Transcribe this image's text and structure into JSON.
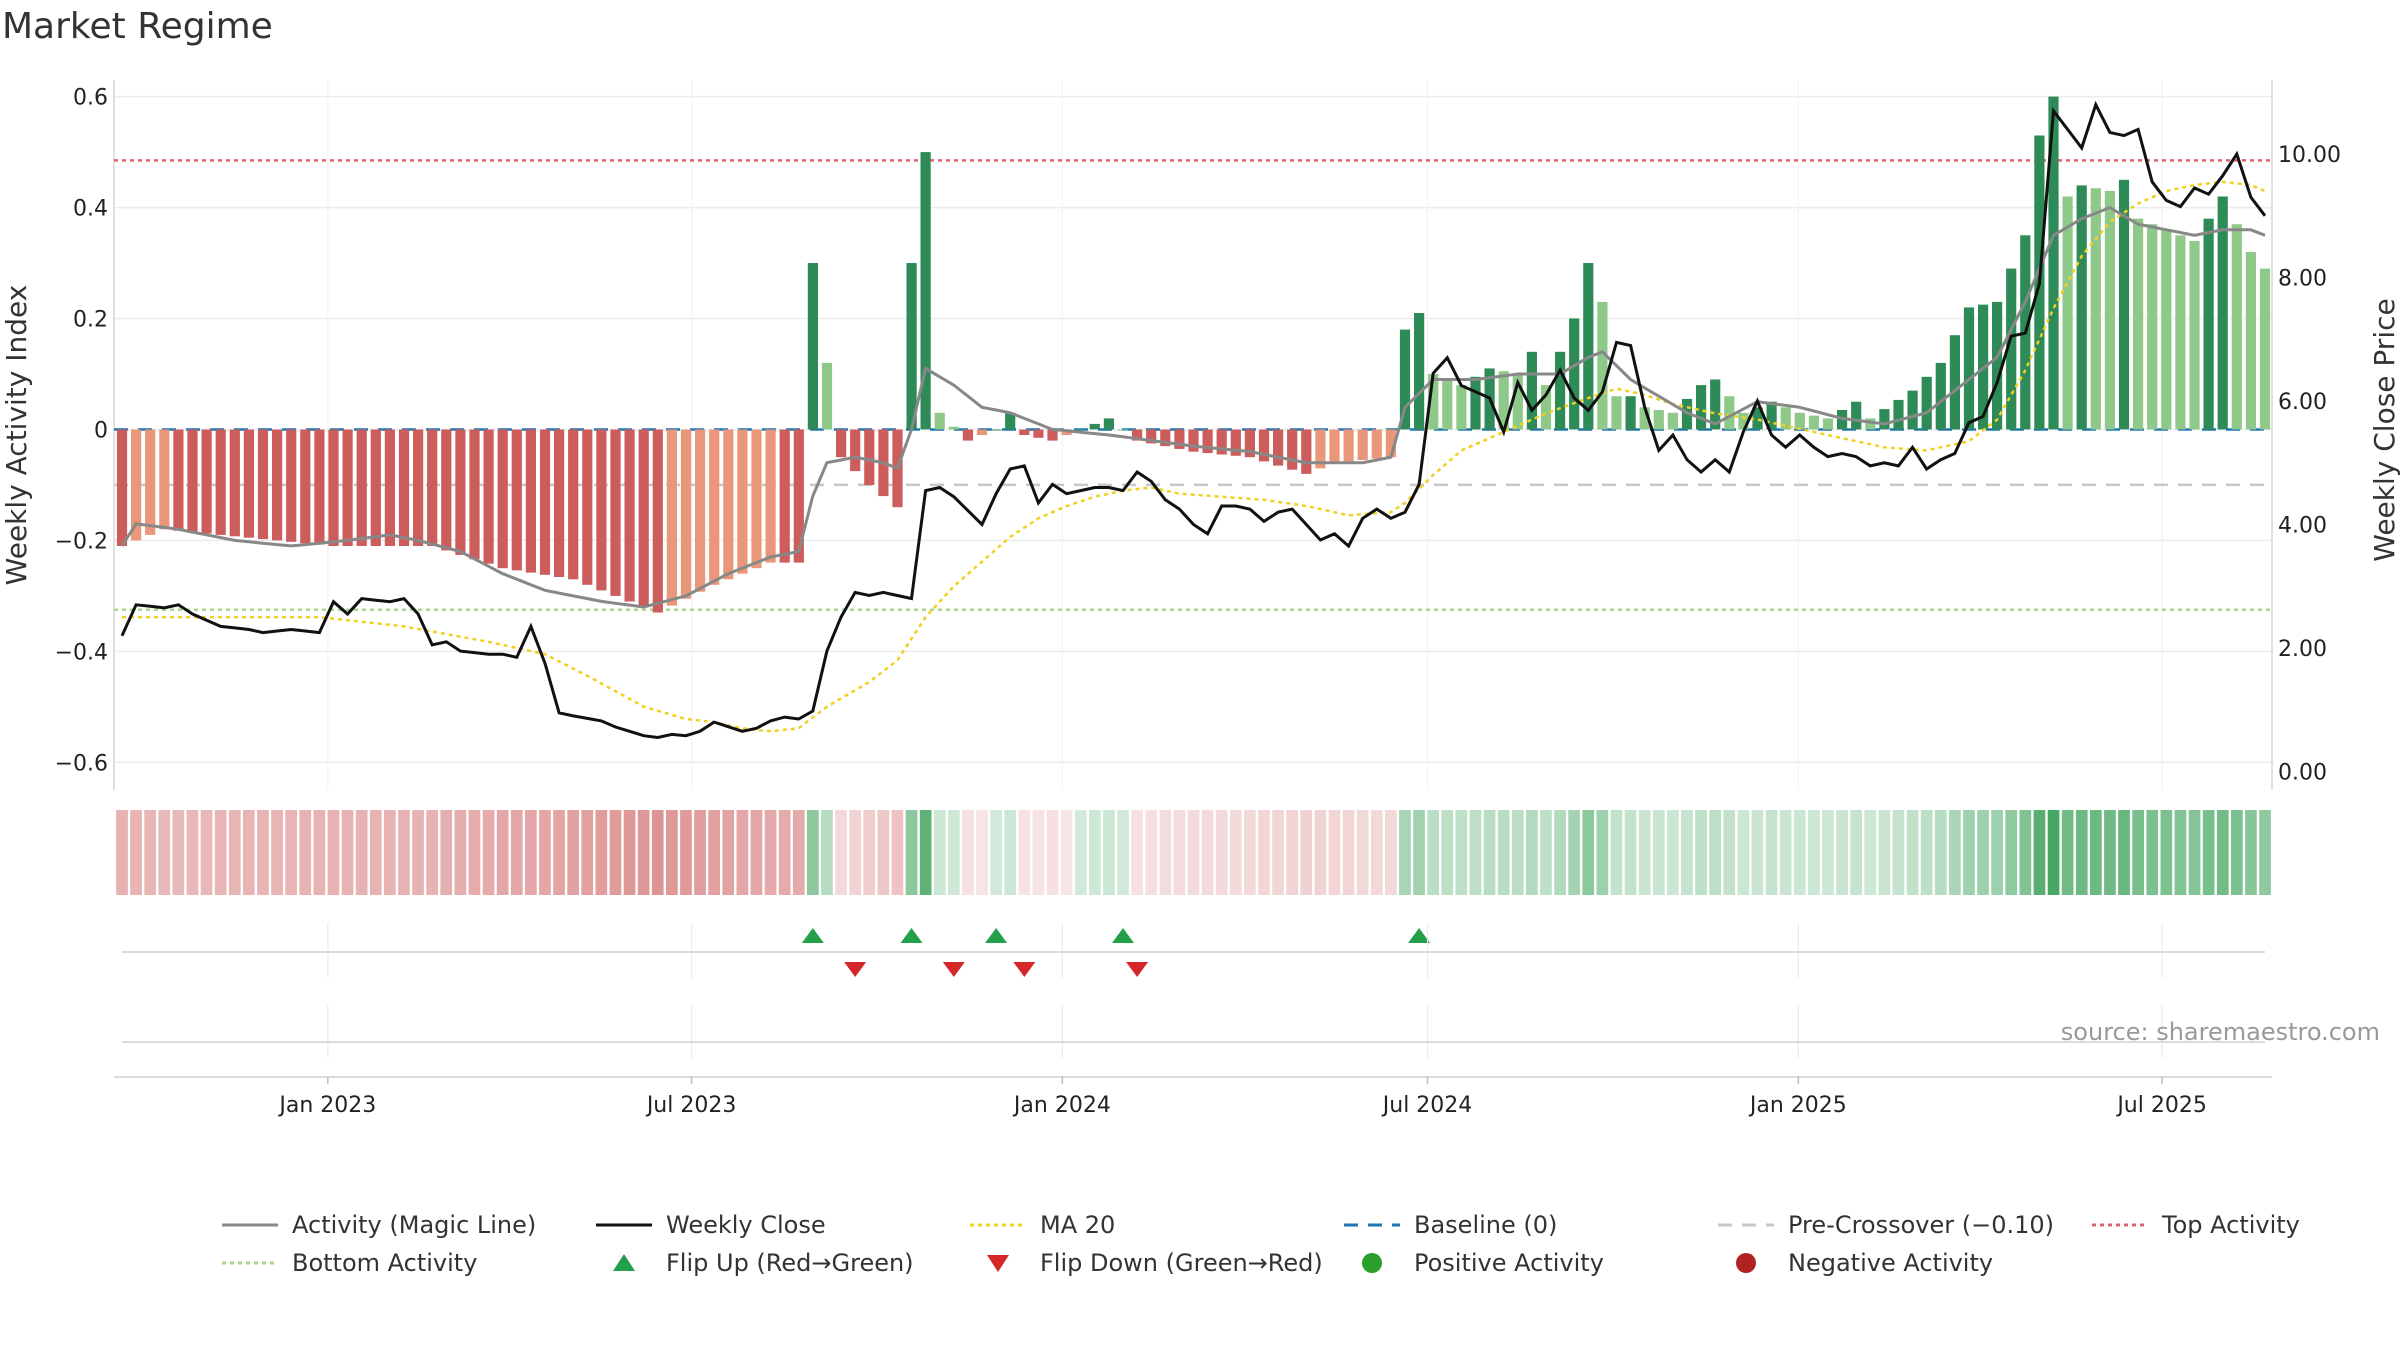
{
  "title": "Market Regime",
  "source": "source: sharemaestro.com",
  "chart_data": {
    "type": "bar",
    "title": "Market Regime",
    "left_axis": {
      "label": "Weekly Activity Index",
      "range": [
        -0.65,
        0.63
      ],
      "ticks": [
        {
          "v": 0.6,
          "label": "0.6"
        },
        {
          "v": 0.4,
          "label": "0.4"
        },
        {
          "v": 0.2,
          "label": "0.2"
        },
        {
          "v": 0,
          "label": "0"
        },
        {
          "v": -0.2,
          "label": "−0.2"
        },
        {
          "v": -0.4,
          "label": "−0.4"
        },
        {
          "v": -0.6,
          "label": "−0.6"
        }
      ]
    },
    "right_axis": {
      "label": "Weekly Close Price",
      "range": [
        -0.3,
        11.2
      ],
      "ticks": [
        {
          "v": 10,
          "label": "10.00"
        },
        {
          "v": 8,
          "label": "8.00"
        },
        {
          "v": 6,
          "label": "6.00"
        },
        {
          "v": 4,
          "label": "4.00"
        },
        {
          "v": 2,
          "label": "2.00"
        },
        {
          "v": 0,
          "label": "0.00"
        }
      ]
    },
    "x_axis": {
      "weeks": 153,
      "ticks": [
        {
          "week": 14.6,
          "label": "Jan 2023"
        },
        {
          "week": 40.4,
          "label": "Jul 2023"
        },
        {
          "week": 66.7,
          "label": "Jan 2024"
        },
        {
          "week": 92.6,
          "label": "Jul 2024"
        },
        {
          "week": 118.9,
          "label": "Jan 2025"
        },
        {
          "week": 144.7,
          "label": "Jul 2025"
        }
      ]
    },
    "reference_lines": [
      {
        "name": "Baseline (0)",
        "value": 0,
        "color": "#1f77b4",
        "style": "dashed"
      },
      {
        "name": "Pre-Crossover (−0.10)",
        "value": -0.1,
        "color": "#c8c8c8",
        "style": "dashed"
      },
      {
        "name": "Top Activity",
        "value": 0.485,
        "color": "#e06070",
        "style": "dotted"
      },
      {
        "name": "Bottom Activity",
        "value": -0.325,
        "color": "#a8d88a",
        "style": "dotted"
      }
    ],
    "activity_keypoints": [
      [
        0,
        -0.21
      ],
      [
        3,
        -0.18
      ],
      [
        15,
        -0.21
      ],
      [
        22,
        -0.21
      ],
      [
        27,
        -0.25
      ],
      [
        32,
        -0.27
      ],
      [
        38,
        -0.33
      ],
      [
        42,
        -0.28
      ],
      [
        46,
        -0.24
      ],
      [
        48,
        -0.24
      ],
      [
        49,
        0.3
      ],
      [
        50,
        0.12
      ],
      [
        51,
        -0.05
      ],
      [
        53,
        -0.1
      ],
      [
        55,
        -0.14
      ],
      [
        56,
        0.3
      ],
      [
        57,
        0.5
      ],
      [
        58,
        0.03
      ],
      [
        60,
        -0.02
      ],
      [
        62,
        0.0
      ],
      [
        63,
        0.03
      ],
      [
        64,
        -0.01
      ],
      [
        66,
        -0.02
      ],
      [
        70,
        0.02
      ],
      [
        72,
        -0.02
      ],
      [
        76,
        -0.04
      ],
      [
        80,
        -0.05
      ],
      [
        84,
        -0.08
      ],
      [
        86,
        -0.06
      ],
      [
        90,
        -0.05
      ],
      [
        91,
        0.18
      ],
      [
        92,
        0.21
      ],
      [
        93,
        0.1
      ],
      [
        95,
        0.08
      ],
      [
        97,
        0.11
      ],
      [
        99,
        0.1
      ],
      [
        100,
        0.14
      ],
      [
        101,
        0.08
      ],
      [
        103,
        0.2
      ],
      [
        104,
        0.3
      ],
      [
        105,
        0.23
      ],
      [
        106,
        0.06
      ],
      [
        107,
        0.06
      ],
      [
        108,
        0.04
      ],
      [
        110,
        0.03
      ],
      [
        112,
        0.08
      ],
      [
        113,
        0.09
      ],
      [
        115,
        0.03
      ],
      [
        117,
        0.05
      ],
      [
        119,
        0.03
      ],
      [
        121,
        0.02
      ],
      [
        123,
        0.05
      ],
      [
        124,
        0.02
      ],
      [
        127,
        0.07
      ],
      [
        129,
        0.12
      ],
      [
        131,
        0.22
      ],
      [
        133,
        0.23
      ],
      [
        135,
        0.35
      ],
      [
        136,
        0.53
      ],
      [
        137,
        0.6
      ],
      [
        138,
        0.42
      ],
      [
        139,
        0.44
      ],
      [
        141,
        0.43
      ],
      [
        142,
        0.45
      ],
      [
        143,
        0.38
      ],
      [
        145,
        0.36
      ],
      [
        147,
        0.34
      ],
      [
        149,
        0.42
      ],
      [
        150,
        0.37
      ],
      [
        151,
        0.32
      ],
      [
        152,
        0.29
      ]
    ],
    "magic_keypoints": [
      [
        0,
        -0.21
      ],
      [
        1,
        -0.17
      ],
      [
        4,
        -0.18
      ],
      [
        8,
        -0.2
      ],
      [
        12,
        -0.21
      ],
      [
        16,
        -0.2
      ],
      [
        19,
        -0.19
      ],
      [
        21,
        -0.2
      ],
      [
        24,
        -0.22
      ],
      [
        27,
        -0.26
      ],
      [
        30,
        -0.29
      ],
      [
        34,
        -0.31
      ],
      [
        37,
        -0.32
      ],
      [
        40,
        -0.3
      ],
      [
        43,
        -0.26
      ],
      [
        46,
        -0.23
      ],
      [
        48,
        -0.22
      ],
      [
        49,
        -0.12
      ],
      [
        50,
        -0.06
      ],
      [
        52,
        -0.05
      ],
      [
        54,
        -0.06
      ],
      [
        55,
        -0.07
      ],
      [
        56,
        0.0
      ],
      [
        57,
        0.11
      ],
      [
        59,
        0.08
      ],
      [
        61,
        0.04
      ],
      [
        63,
        0.03
      ],
      [
        66,
        0.0
      ],
      [
        70,
        -0.01
      ],
      [
        73,
        -0.02
      ],
      [
        76,
        -0.03
      ],
      [
        80,
        -0.04
      ],
      [
        84,
        -0.06
      ],
      [
        88,
        -0.06
      ],
      [
        90,
        -0.05
      ],
      [
        91,
        0.04
      ],
      [
        93,
        0.09
      ],
      [
        96,
        0.09
      ],
      [
        99,
        0.1
      ],
      [
        102,
        0.1
      ],
      [
        104,
        0.13
      ],
      [
        105,
        0.14
      ],
      [
        107,
        0.09
      ],
      [
        109,
        0.06
      ],
      [
        111,
        0.03
      ],
      [
        113,
        0.01
      ],
      [
        116,
        0.05
      ],
      [
        119,
        0.04
      ],
      [
        122,
        0.02
      ],
      [
        125,
        0.01
      ],
      [
        128,
        0.03
      ],
      [
        131,
        0.09
      ],
      [
        133,
        0.13
      ],
      [
        135,
        0.23
      ],
      [
        137,
        0.35
      ],
      [
        139,
        0.38
      ],
      [
        141,
        0.4
      ],
      [
        143,
        0.37
      ],
      [
        145,
        0.36
      ],
      [
        147,
        0.35
      ],
      [
        149,
        0.36
      ],
      [
        151,
        0.36
      ],
      [
        152,
        0.35
      ]
    ],
    "close_keypoints": [
      [
        0,
        2.2
      ],
      [
        1,
        2.7
      ],
      [
        3,
        2.65
      ],
      [
        4,
        2.7
      ],
      [
        5,
        2.55
      ],
      [
        7,
        2.35
      ],
      [
        9,
        2.3
      ],
      [
        10,
        2.25
      ],
      [
        12,
        2.3
      ],
      [
        14,
        2.25
      ],
      [
        15,
        2.75
      ],
      [
        16,
        2.55
      ],
      [
        17,
        2.8
      ],
      [
        19,
        2.75
      ],
      [
        20,
        2.8
      ],
      [
        21,
        2.55
      ],
      [
        22,
        2.05
      ],
      [
        23,
        2.1
      ],
      [
        24,
        1.95
      ],
      [
        26,
        1.9
      ],
      [
        27,
        1.9
      ],
      [
        28,
        1.85
      ],
      [
        29,
        2.35
      ],
      [
        30,
        1.75
      ],
      [
        31,
        0.95
      ],
      [
        32,
        0.9
      ],
      [
        34,
        0.82
      ],
      [
        35,
        0.72
      ],
      [
        36,
        0.65
      ],
      [
        37,
        0.58
      ],
      [
        38,
        0.55
      ],
      [
        39,
        0.6
      ],
      [
        40,
        0.58
      ],
      [
        41,
        0.65
      ],
      [
        42,
        0.8
      ],
      [
        44,
        0.65
      ],
      [
        45,
        0.7
      ],
      [
        46,
        0.82
      ],
      [
        47,
        0.88
      ],
      [
        48,
        0.85
      ],
      [
        49,
        0.98
      ],
      [
        50,
        1.95
      ],
      [
        51,
        2.5
      ],
      [
        52,
        2.9
      ],
      [
        53,
        2.85
      ],
      [
        54,
        2.9
      ],
      [
        55,
        2.85
      ],
      [
        56,
        2.8
      ],
      [
        57,
        4.55
      ],
      [
        58,
        4.6
      ],
      [
        59,
        4.45
      ],
      [
        61,
        4.0
      ],
      [
        62,
        4.5
      ],
      [
        63,
        4.9
      ],
      [
        64,
        4.95
      ],
      [
        65,
        4.35
      ],
      [
        66,
        4.65
      ],
      [
        67,
        4.5
      ],
      [
        68,
        4.55
      ],
      [
        69,
        4.6
      ],
      [
        70,
        4.6
      ],
      [
        71,
        4.55
      ],
      [
        72,
        4.85
      ],
      [
        73,
        4.7
      ],
      [
        74,
        4.4
      ],
      [
        75,
        4.25
      ],
      [
        76,
        4.0
      ],
      [
        77,
        3.85
      ],
      [
        78,
        4.3
      ],
      [
        79,
        4.3
      ],
      [
        80,
        4.25
      ],
      [
        81,
        4.05
      ],
      [
        82,
        4.2
      ],
      [
        83,
        4.25
      ],
      [
        84,
        4.0
      ],
      [
        85,
        3.75
      ],
      [
        86,
        3.85
      ],
      [
        87,
        3.65
      ],
      [
        88,
        4.1
      ],
      [
        89,
        4.25
      ],
      [
        90,
        4.1
      ],
      [
        91,
        4.2
      ],
      [
        92,
        4.65
      ],
      [
        93,
        6.45
      ],
      [
        94,
        6.7
      ],
      [
        95,
        6.25
      ],
      [
        96,
        6.15
      ],
      [
        97,
        6.05
      ],
      [
        98,
        5.5
      ],
      [
        99,
        6.3
      ],
      [
        100,
        5.85
      ],
      [
        101,
        6.1
      ],
      [
        102,
        6.5
      ],
      [
        103,
        6.05
      ],
      [
        104,
        5.85
      ],
      [
        105,
        6.15
      ],
      [
        106,
        6.95
      ],
      [
        107,
        6.9
      ],
      [
        108,
        5.9
      ],
      [
        109,
        5.2
      ],
      [
        110,
        5.45
      ],
      [
        111,
        5.05
      ],
      [
        112,
        4.85
      ],
      [
        113,
        5.05
      ],
      [
        114,
        4.85
      ],
      [
        115,
        5.5
      ],
      [
        116,
        6.0
      ],
      [
        117,
        5.45
      ],
      [
        118,
        5.25
      ],
      [
        119,
        5.45
      ],
      [
        120,
        5.25
      ],
      [
        121,
        5.1
      ],
      [
        122,
        5.15
      ],
      [
        123,
        5.1
      ],
      [
        124,
        4.95
      ],
      [
        125,
        5.0
      ],
      [
        126,
        4.95
      ],
      [
        127,
        5.25
      ],
      [
        128,
        4.9
      ],
      [
        129,
        5.05
      ],
      [
        130,
        5.15
      ],
      [
        131,
        5.65
      ],
      [
        132,
        5.75
      ],
      [
        133,
        6.3
      ],
      [
        134,
        7.05
      ],
      [
        135,
        7.1
      ],
      [
        136,
        7.9
      ],
      [
        137,
        10.7
      ],
      [
        138,
        10.4
      ],
      [
        139,
        10.1
      ],
      [
        140,
        10.8
      ],
      [
        141,
        10.35
      ],
      [
        142,
        10.3
      ],
      [
        143,
        10.4
      ],
      [
        144,
        9.55
      ],
      [
        145,
        9.25
      ],
      [
        146,
        9.15
      ],
      [
        147,
        9.45
      ],
      [
        148,
        9.35
      ],
      [
        149,
        9.65
      ],
      [
        150,
        10.0
      ],
      [
        151,
        9.3
      ],
      [
        152,
        9.0
      ]
    ],
    "ma20_keypoints": [
      [
        0,
        2.5
      ],
      [
        8,
        2.5
      ],
      [
        14,
        2.5
      ],
      [
        20,
        2.35
      ],
      [
        26,
        2.1
      ],
      [
        30,
        1.9
      ],
      [
        33,
        1.55
      ],
      [
        35,
        1.3
      ],
      [
        37,
        1.05
      ],
      [
        40,
        0.85
      ],
      [
        42,
        0.8
      ],
      [
        44,
        0.7
      ],
      [
        46,
        0.65
      ],
      [
        48,
        0.7
      ],
      [
        50,
        1.05
      ],
      [
        53,
        1.45
      ],
      [
        55,
        1.8
      ],
      [
        57,
        2.5
      ],
      [
        59,
        3.0
      ],
      [
        61,
        3.4
      ],
      [
        63,
        3.8
      ],
      [
        65,
        4.1
      ],
      [
        67,
        4.3
      ],
      [
        69,
        4.45
      ],
      [
        71,
        4.55
      ],
      [
        73,
        4.6
      ],
      [
        75,
        4.5
      ],
      [
        78,
        4.45
      ],
      [
        81,
        4.4
      ],
      [
        84,
        4.3
      ],
      [
        87,
        4.15
      ],
      [
        90,
        4.2
      ],
      [
        91,
        4.35
      ],
      [
        93,
        4.8
      ],
      [
        95,
        5.2
      ],
      [
        98,
        5.5
      ],
      [
        101,
        5.8
      ],
      [
        104,
        6.05
      ],
      [
        106,
        6.2
      ],
      [
        108,
        6.1
      ],
      [
        110,
        5.95
      ],
      [
        113,
        5.8
      ],
      [
        116,
        5.7
      ],
      [
        119,
        5.55
      ],
      [
        122,
        5.4
      ],
      [
        125,
        5.25
      ],
      [
        128,
        5.2
      ],
      [
        131,
        5.35
      ],
      [
        133,
        5.7
      ],
      [
        135,
        6.5
      ],
      [
        137,
        7.5
      ],
      [
        139,
        8.35
      ],
      [
        141,
        8.9
      ],
      [
        143,
        9.2
      ],
      [
        145,
        9.4
      ],
      [
        147,
        9.5
      ],
      [
        149,
        9.55
      ],
      [
        151,
        9.5
      ],
      [
        152,
        9.4
      ]
    ],
    "flips": [
      {
        "week": 49,
        "type": "up"
      },
      {
        "week": 52,
        "type": "down"
      },
      {
        "week": 56,
        "type": "up"
      },
      {
        "week": 59,
        "type": "down"
      },
      {
        "week": 62,
        "type": "up"
      },
      {
        "week": 64,
        "type": "down"
      },
      {
        "week": 71,
        "type": "up"
      },
      {
        "week": 72,
        "type": "down"
      },
      {
        "week": 92,
        "type": "up"
      }
    ],
    "colors": {
      "neg_strong": "#cd5c5c",
      "neg_light": "#e9967a",
      "pos_strong": "#2e8b57",
      "pos_light": "#8fc98a",
      "magic": "#888888",
      "close": "#111111",
      "ma20": "#f0d020",
      "baseline": "#1f77b4",
      "pre_crossover": "#c8c8c8",
      "top": "#e06070",
      "bottom": "#a8d88a",
      "flip_up": "#23a04a",
      "flip_down": "#d62728",
      "pos_dot": "#2ca02c",
      "neg_dot": "#b22222"
    },
    "legend": [
      {
        "label": "Activity (Magic Line)",
        "kind": "line",
        "color": "#888888",
        "dash": ""
      },
      {
        "label": "Weekly Close",
        "kind": "line",
        "color": "#111111",
        "dash": ""
      },
      {
        "label": "MA 20",
        "kind": "line",
        "color": "#f0d020",
        "dash": "4,4"
      },
      {
        "label": "Baseline (0)",
        "kind": "line",
        "color": "#1f77b4",
        "dash": "14,10"
      },
      {
        "label": "Pre-Crossover (−0.10)",
        "kind": "line",
        "color": "#c8c8c8",
        "dash": "14,10"
      },
      {
        "label": "Top Activity",
        "kind": "line",
        "color": "#e06070",
        "dash": "4,4"
      },
      {
        "label": "Bottom Activity",
        "kind": "line",
        "color": "#a8d88a",
        "dash": "4,4"
      },
      {
        "label": "Flip Up (Red→Green)",
        "kind": "tri-up",
        "color": "#23a04a",
        "dash": ""
      },
      {
        "label": "Flip Down (Green→Red)",
        "kind": "tri-down",
        "color": "#d62728",
        "dash": ""
      },
      {
        "label": "Positive Activity",
        "kind": "dot",
        "color": "#2ca02c",
        "dash": ""
      },
      {
        "label": "Negative Activity",
        "kind": "dot",
        "color": "#b22222",
        "dash": ""
      }
    ]
  }
}
